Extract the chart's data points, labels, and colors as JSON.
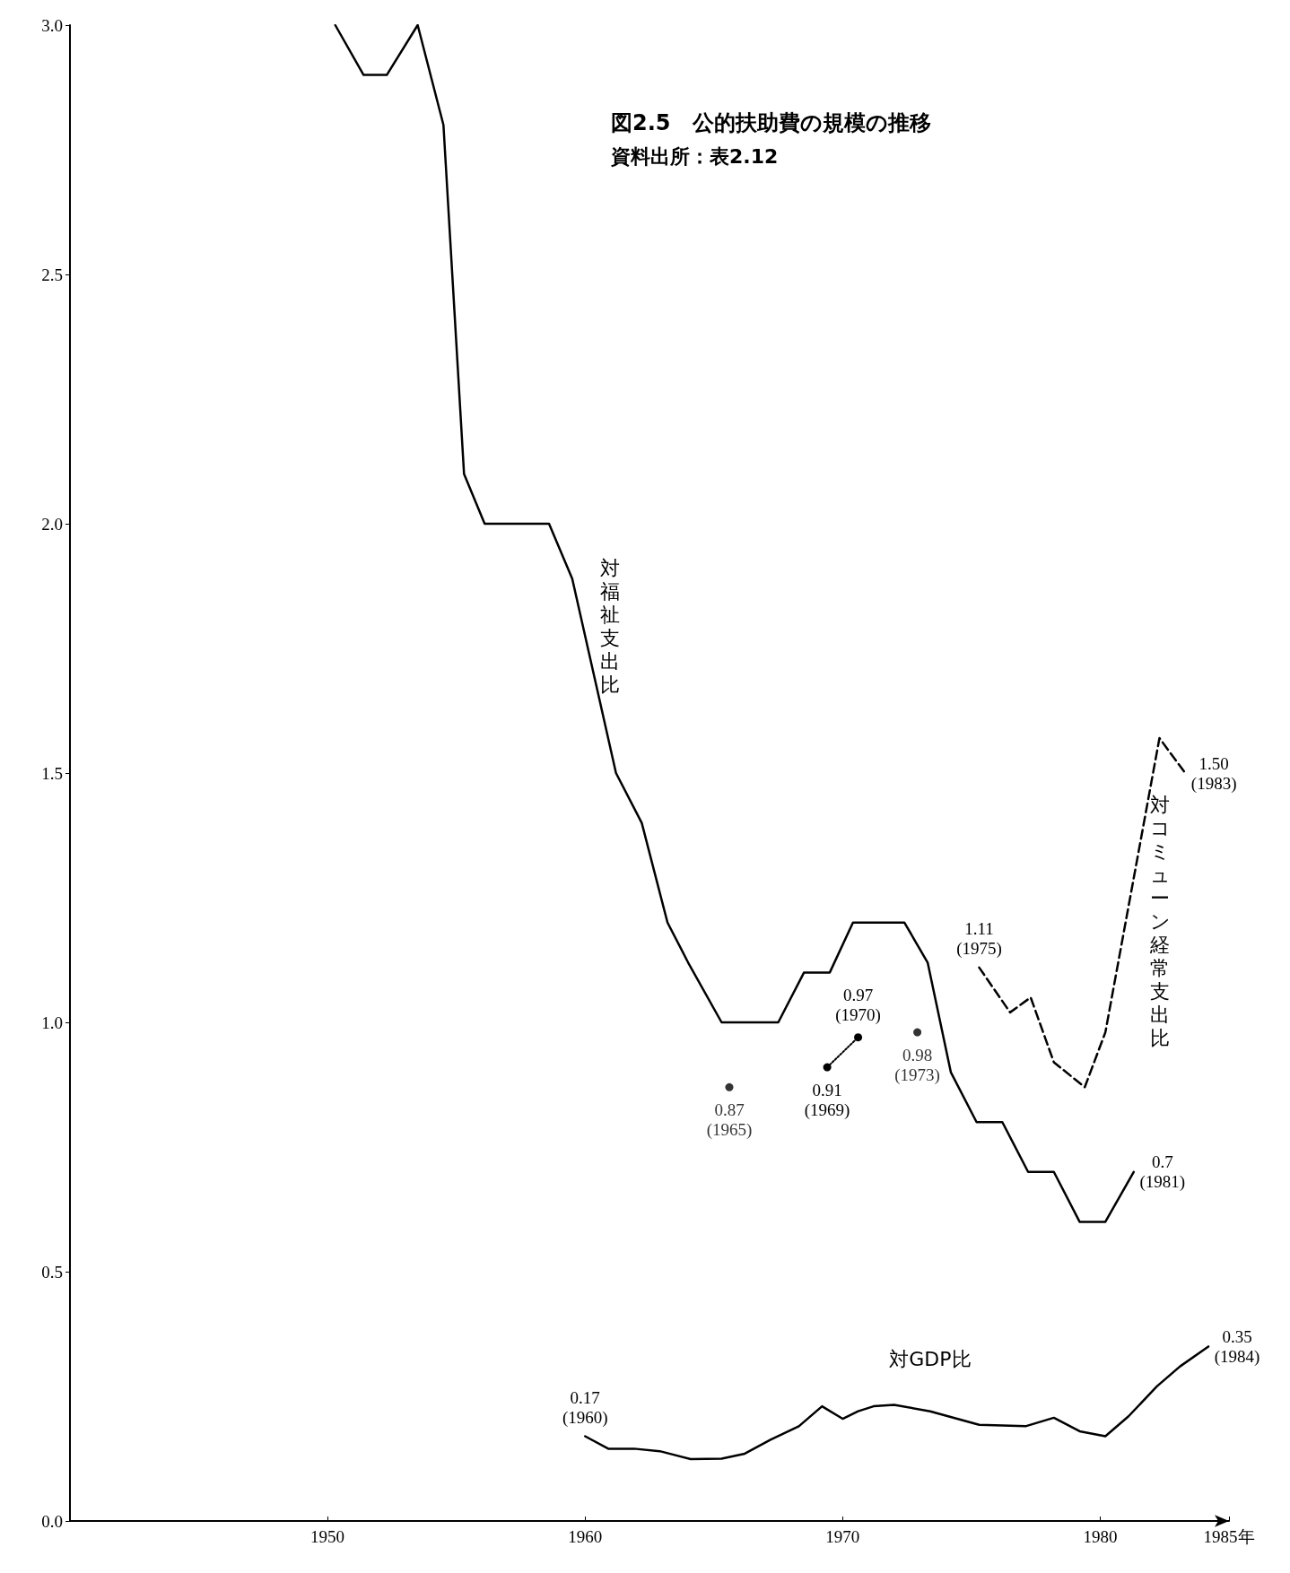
{
  "chart_data": {
    "type": "line",
    "title": "図2.5　公的扶助費の規模の推移",
    "subtitle": "資料出所：表2.12",
    "xlim": [
      1940,
      1985
    ],
    "xticks": [
      1950,
      1960,
      1970,
      1980,
      {
        "value": 1985,
        "label": "1985年"
      }
    ],
    "ylim": [
      0,
      3
    ],
    "yticks": [
      {
        "value": 0,
        "label": "0.0"
      },
      {
        "value": 0.5,
        "label": "0.5"
      },
      {
        "value": 1,
        "label": "1.0"
      },
      {
        "value": 1.5,
        "label": "1.5"
      },
      {
        "value": 2,
        "label": "2.0"
      },
      {
        "value": 2.5,
        "label": "2.5"
      },
      {
        "value": 3,
        "label": "3.0"
      }
    ],
    "grid": false,
    "legend": false,
    "marker": "none",
    "series": [
      {
        "name": "対福祉支出比",
        "color": "#000000",
        "line_style": "solid",
        "x": [
          1950.3,
          1951.4,
          1952.3,
          1953.5,
          1954.5,
          1955.3,
          1956.1,
          1958.6,
          1959.5,
          1961.2,
          1962.2,
          1963.2,
          1964.0,
          1965.3,
          1967.5,
          1968.5,
          1969.5,
          1970.4,
          1972.4,
          1973.3,
          1974.2,
          1975.2,
          1976.2,
          1977.2,
          1978.2,
          1979.2,
          1980.2,
          1981.3
        ],
        "values": [
          3.0,
          2.9,
          2.9,
          3.0,
          2.8,
          2.1,
          2.0,
          2.0,
          1.89,
          1.5,
          1.4,
          1.2,
          1.12,
          1.0,
          1.0,
          1.1,
          1.1,
          1.2,
          1.2,
          1.12,
          0.9,
          0.8,
          0.8,
          0.7,
          0.7,
          0.6,
          0.6,
          0.7
        ],
        "value_labels": [
          null,
          null,
          null,
          null,
          null,
          null,
          null,
          null,
          null,
          null,
          null,
          null,
          null,
          null,
          null,
          null,
          null,
          null,
          null,
          null,
          null,
          null,
          null,
          null,
          null,
          null,
          null,
          "0.7\n(1981)"
        ]
      },
      {
        "name": "対コミューン経常支出比",
        "color": "#000000",
        "line_style": "dashed",
        "x": [
          1975.3,
          1976.5,
          1977.3,
          1978.2,
          1979.4,
          1980.2,
          1982.3,
          1983.3
        ],
        "values": [
          1.11,
          1.02,
          1.05,
          0.92,
          0.87,
          0.98,
          1.57,
          1.5
        ],
        "value_labels": [
          "1.11\n(1975)",
          null,
          null,
          null,
          null,
          null,
          null,
          "1.50\n(1983)"
        ]
      },
      {
        "name": "対GDP比",
        "color": "#000000",
        "line_style": "solid",
        "x": [
          1960,
          1960.9,
          1961.9,
          1962.9,
          1964.1,
          1965.3,
          1966.2,
          1967.2,
          1968.3,
          1969.2,
          1970,
          1970.6,
          1971.2,
          1972,
          1973.4,
          1975.3,
          1977.1,
          1978.2,
          1979.2,
          1980.2,
          1981.1,
          1982.2,
          1983.1,
          1984.2
        ],
        "values": [
          0.17,
          0.145,
          0.145,
          0.14,
          0.124,
          0.125,
          0.135,
          0.163,
          0.19,
          0.23,
          0.205,
          0.22,
          0.23,
          0.233,
          0.22,
          0.193,
          0.19,
          0.207,
          0.18,
          0.17,
          0.21,
          0.27,
          0.31,
          0.35
        ],
        "value_labels": [
          "0.17\n(1960)",
          null,
          null,
          null,
          null,
          null,
          null,
          null,
          null,
          null,
          null,
          null,
          null,
          null,
          null,
          null,
          null,
          null,
          null,
          null,
          null,
          null,
          null,
          "0.35\n(1984)"
        ]
      },
      {
        "color": "#000000",
        "line_style": "dotted",
        "marker": "circle",
        "x": [
          1969.4,
          1970.6
        ],
        "values": [
          0.91,
          0.97
        ],
        "value_labels": [
          "0.91\n(1969)",
          "0.97\n(1970)"
        ]
      },
      {
        "type": "scatter",
        "color": "#000000",
        "marker": "circle",
        "x": [
          1965.6,
          1972.9
        ],
        "values": [
          0.87,
          0.98
        ],
        "value_labels": [
          "0.87\n(1965)",
          "0.98\n(1973)"
        ]
      }
    ]
  }
}
